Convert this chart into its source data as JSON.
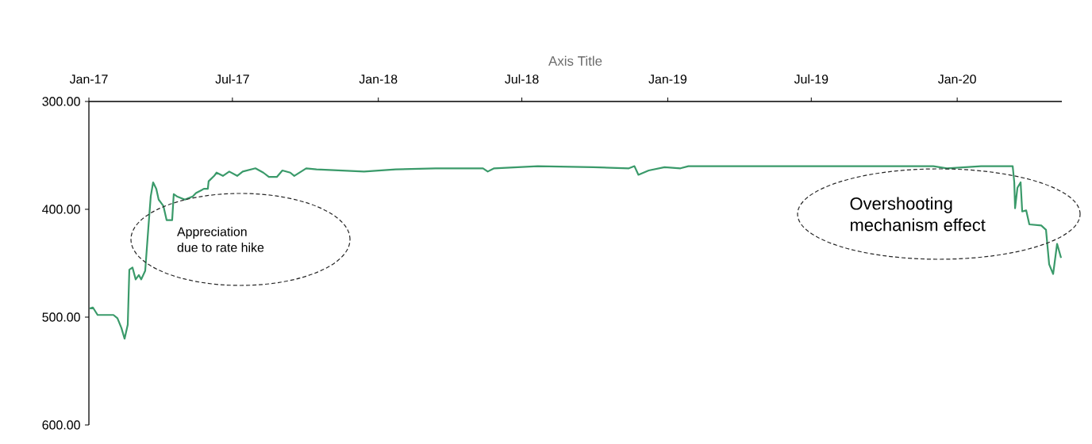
{
  "chart_data": {
    "type": "line",
    "xlabel": "Axis Title",
    "x": [
      "2017-01-02",
      "2017-01-06",
      "2017-01-12",
      "2017-02-01",
      "2017-02-06",
      "2017-02-11",
      "2017-02-15",
      "2017-02-19",
      "2017-02-21",
      "2017-02-25",
      "2017-03-01",
      "2017-03-05",
      "2017-03-08",
      "2017-03-13",
      "2017-03-17",
      "2017-03-20",
      "2017-03-23",
      "2017-03-27",
      "2017-03-30",
      "2017-04-05",
      "2017-04-09",
      "2017-04-16",
      "2017-04-18",
      "2017-04-22",
      "2017-05-02",
      "2017-05-12",
      "2017-05-16",
      "2017-05-26",
      "2017-05-31",
      "2017-06-01",
      "2017-06-08",
      "2017-06-11",
      "2017-06-19",
      "2017-06-27",
      "2017-07-07",
      "2017-07-14",
      "2017-07-30",
      "2017-08-09",
      "2017-08-16",
      "2017-08-26",
      "2017-09-02",
      "2017-09-12",
      "2017-09-17",
      "2017-10-02",
      "2017-10-15",
      "2017-11-14",
      "2017-12-14",
      "2018-01-23",
      "2018-03-14",
      "2018-05-13",
      "2018-05-19",
      "2018-05-27",
      "2018-07-21",
      "2018-09-29",
      "2018-11-13",
      "2018-11-20",
      "2018-11-25",
      "2018-12-08",
      "2018-12-28",
      "2019-01-17",
      "2019-01-27",
      "2019-04-16",
      "2019-07-25",
      "2019-11-27",
      "2019-12-02",
      "2019-12-19",
      "2020-01-31",
      "2020-03-11",
      "2020-03-13",
      "2020-03-14",
      "2020-03-17",
      "2020-03-21",
      "2020-03-23",
      "2020-03-28",
      "2020-04-01",
      "2020-04-16",
      "2020-04-22",
      "2020-04-26",
      "2020-05-01",
      "2020-05-06",
      "2020-05-11"
    ],
    "values": [
      492,
      491,
      498,
      498,
      501,
      510,
      520,
      507,
      456,
      454,
      465,
      461,
      465,
      457,
      417,
      388,
      375,
      381,
      391,
      397,
      410,
      410,
      386,
      388,
      391,
      388,
      385,
      381,
      381,
      374,
      369,
      366,
      369,
      365,
      369,
      365,
      362,
      366,
      370,
      370,
      364,
      366,
      369,
      362,
      363,
      364,
      365,
      363,
      362,
      362,
      365,
      362,
      360,
      361,
      362,
      360,
      368,
      364,
      361,
      362,
      360,
      360,
      360,
      360,
      360,
      362,
      360,
      360,
      375,
      399,
      380,
      375,
      402,
      401,
      414,
      415,
      419,
      451,
      460,
      432,
      445
    ],
    "color": "#3a9a6a",
    "line_style": "solid",
    "marker": "none",
    "grid": false,
    "xlim": [
      "2017-01-01",
      "2020-05-12"
    ],
    "xticks": [
      {
        "value": "2017-01-01",
        "label": "Jan-17"
      },
      {
        "value": "2017-07-01",
        "label": "Jul-17"
      },
      {
        "value": "2018-01-01",
        "label": "Jan-18"
      },
      {
        "value": "2018-07-01",
        "label": "Jul-18"
      },
      {
        "value": "2019-01-01",
        "label": "Jan-19"
      },
      {
        "value": "2019-07-01",
        "label": "Jul-19"
      },
      {
        "value": "2020-01-01",
        "label": "Jan-20"
      }
    ],
    "ylim": [
      600,
      300
    ],
    "yticks": [
      {
        "value": 300,
        "label": "300.00"
      },
      {
        "value": 400,
        "label": "400.00"
      },
      {
        "value": 500,
        "label": "500.00"
      },
      {
        "value": 600,
        "label": "600.00"
      }
    ],
    "annotations": [
      "Appreciation\ndue to rate hike",
      "Overshooting\nmechanism effect"
    ]
  }
}
